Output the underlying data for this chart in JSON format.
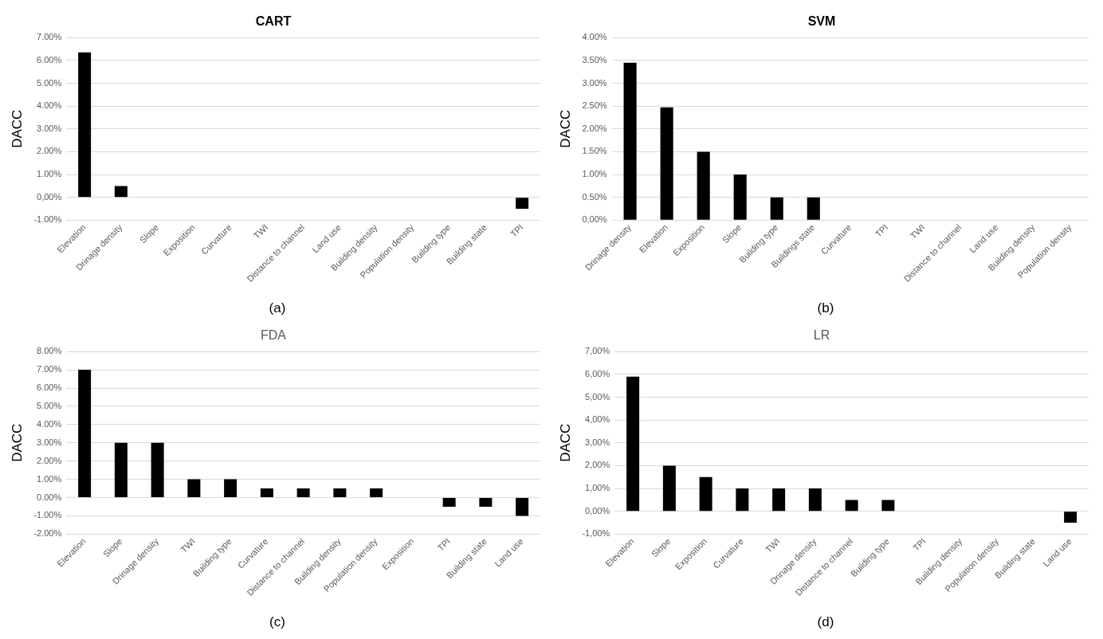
{
  "chart_data": [
    {
      "type": "bar",
      "title": "CART",
      "ylabel": "DACC",
      "annotations": [
        "(a)"
      ],
      "color": "#000000",
      "grid": "y",
      "categories": [
        "Elevation",
        "Drinage density",
        "Slope",
        "Exposition",
        "Curvature",
        "TWI",
        "Distance to channel",
        "Land use",
        "Building density",
        "Population density",
        "Building type",
        "Building state",
        "TPI"
      ],
      "values": [
        6.35,
        0.5,
        0,
        0,
        0,
        0,
        0,
        0,
        0,
        0,
        0,
        0,
        -0.5
      ],
      "ylim": [
        -1,
        7
      ],
      "yticks": [
        {
          "value": -1,
          "label": "-1.00%"
        },
        {
          "value": 0,
          "label": "0,00%"
        },
        {
          "value": 1,
          "label": "1.00%"
        },
        {
          "value": 2,
          "label": "2.00%"
        },
        {
          "value": 3,
          "label": "3.00%"
        },
        {
          "value": 4,
          "label": "4.00%"
        },
        {
          "value": 5,
          "label": "5.00%"
        },
        {
          "value": 6,
          "label": "6.00%"
        },
        {
          "value": 7,
          "label": "7.00%"
        }
      ]
    },
    {
      "type": "bar",
      "title": "SVM",
      "ylabel": "DACC",
      "annotations": [
        "(b)"
      ],
      "color": "#000000",
      "grid": "y",
      "categories": [
        "Drinage density",
        "Elevation",
        "Exposition",
        "Slope",
        "Building type",
        "Buildings state",
        "Curvature",
        "TPI",
        "TWI",
        "Distance to channel",
        "Land use",
        "Building density",
        "Population density"
      ],
      "values": [
        3.45,
        2.47,
        1.5,
        1,
        0.5,
        0.5,
        0,
        0,
        0,
        0,
        0,
        0,
        0
      ],
      "ylim": [
        0,
        4
      ],
      "yticks": [
        {
          "value": 0,
          "label": "0,00%"
        },
        {
          "value": 0.5,
          "label": "0.50%"
        },
        {
          "value": 1,
          "label": "1.00%"
        },
        {
          "value": 1.5,
          "label": "1.50%"
        },
        {
          "value": 2,
          "label": "2.00%"
        },
        {
          "value": 2.5,
          "label": "2.50%"
        },
        {
          "value": 3,
          "label": "3.00%"
        },
        {
          "value": 3.5,
          "label": "3.50%"
        },
        {
          "value": 4,
          "label": "4.00%"
        }
      ]
    },
    {
      "type": "bar",
      "title": "FDA",
      "ylabel": "DACC",
      "annotations": [
        "(c)"
      ],
      "color": "#000000",
      "grid": "y",
      "categories": [
        "Elevation",
        "Slope",
        "Drinage density",
        "TWI",
        "Building type",
        "Curvature",
        "Distance to channel",
        "Building density",
        "Population density",
        "Exposition",
        "TPI",
        "Building state",
        "Land use"
      ],
      "values": [
        7,
        3,
        3,
        1,
        1,
        0.5,
        0.5,
        0.5,
        0.5,
        0,
        -0.5,
        -0.5,
        -1
      ],
      "ylim": [
        -2,
        8
      ],
      "yticks": [
        {
          "value": -2,
          "label": "-2.00%"
        },
        {
          "value": -1,
          "label": "-1.00%"
        },
        {
          "value": 0,
          "label": "0.00%"
        },
        {
          "value": 1,
          "label": "1.00%"
        },
        {
          "value": 2,
          "label": "2.00%"
        },
        {
          "value": 3,
          "label": "3.00%"
        },
        {
          "value": 4,
          "label": "4.00%"
        },
        {
          "value": 5,
          "label": "5.00%"
        },
        {
          "value": 6,
          "label": "6.00%"
        },
        {
          "value": 7,
          "label": "7.00%"
        },
        {
          "value": 8,
          "label": "8.00%"
        }
      ]
    },
    {
      "type": "bar",
      "title": "LR",
      "ylabel": "DACC",
      "annotations": [
        "(d)"
      ],
      "color": "#000000",
      "grid": "y",
      "categories": [
        "Elevation",
        "Slope",
        "Exposition",
        "Curvature",
        "TWI",
        "Drinage density",
        "Distance to channel",
        "Building type",
        "TPI",
        "Building density",
        "Population density",
        "Building state",
        "Land use"
      ],
      "values": [
        5.9,
        2,
        1.5,
        1,
        1,
        1,
        0.5,
        0.5,
        0,
        0,
        0,
        0,
        -0.5
      ],
      "ylim": [
        -1,
        7
      ],
      "yticks": [
        {
          "value": -1,
          "label": "-1,00%"
        },
        {
          "value": 0,
          "label": "0,00%"
        },
        {
          "value": 1,
          "label": "1,00%"
        },
        {
          "value": 2,
          "label": "2,00%"
        },
        {
          "value": 3,
          "label": "3,00%"
        },
        {
          "value": 4,
          "label": "4,00%"
        },
        {
          "value": 5,
          "label": "5,00%"
        },
        {
          "value": 6,
          "label": "6,00%"
        },
        {
          "value": 7,
          "label": "7,00%"
        }
      ]
    }
  ]
}
